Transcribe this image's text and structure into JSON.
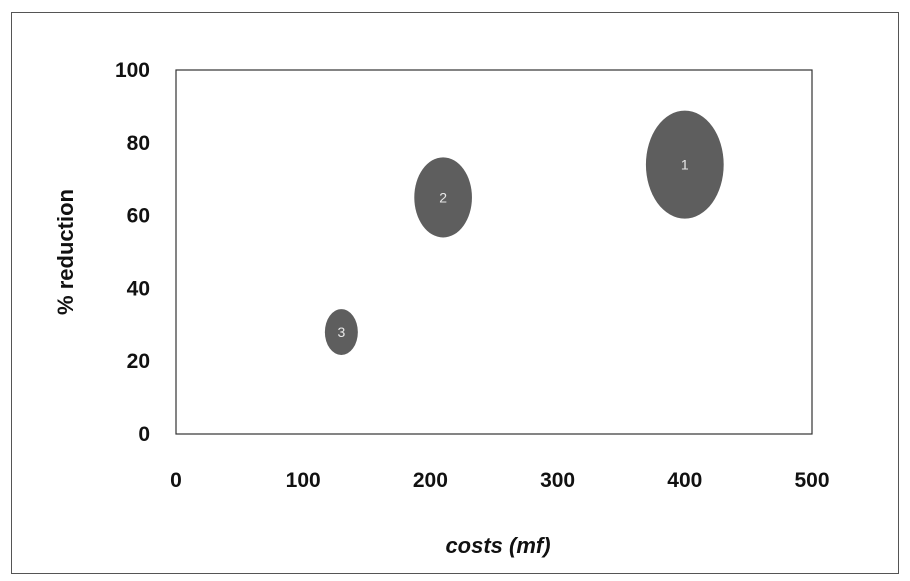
{
  "chart_data": {
    "type": "bubble",
    "title": "",
    "xlabel": "costs (mf)",
    "ylabel": "% reduction",
    "xlim": [
      0,
      500
    ],
    "ylim": [
      0,
      100
    ],
    "xticks": [
      0,
      100,
      200,
      300,
      400,
      500
    ],
    "yticks": [
      0,
      20,
      40,
      60,
      80,
      100
    ],
    "grid": false,
    "legend": "none",
    "bubble_color": "#5e5e5e",
    "points": [
      {
        "label": "1",
        "x": 400,
        "y": 74,
        "size": 100
      },
      {
        "label": "2",
        "x": 210,
        "y": 65,
        "size": 55
      },
      {
        "label": "3",
        "x": 130,
        "y": 28,
        "size": 18
      }
    ]
  }
}
